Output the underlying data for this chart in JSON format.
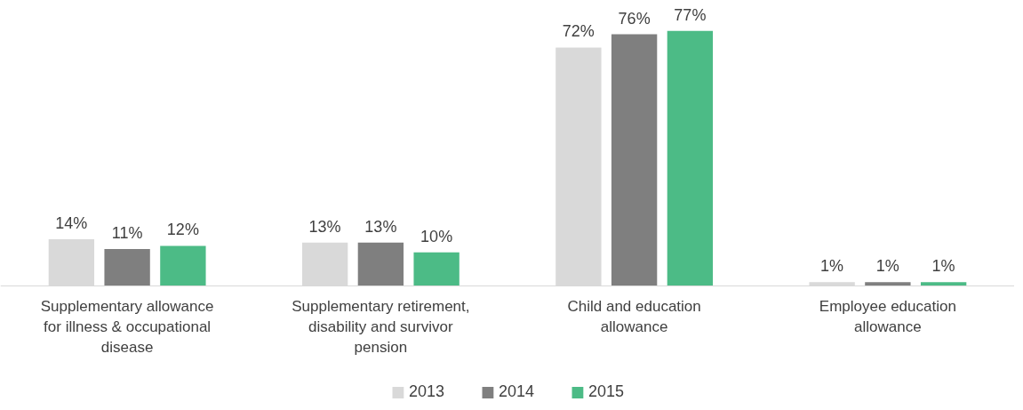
{
  "chart_data": {
    "type": "bar",
    "categories": [
      "Supplementary allowance for illness & occupational disease",
      "Supplementary retirement, disability and survivor pension",
      "Child and education allowance",
      "Employee education allowance"
    ],
    "series": [
      {
        "name": "2013",
        "color": "#d9d9d9",
        "values": [
          14,
          13,
          72,
          1
        ],
        "value_labels": [
          "14%",
          "13%",
          "72%",
          "1%"
        ]
      },
      {
        "name": "2014",
        "color": "#7f7f7f",
        "values": [
          11,
          13,
          76,
          1
        ],
        "value_labels": [
          "11%",
          "13%",
          "76%",
          "1%"
        ]
      },
      {
        "name": "2015",
        "color": "#4cbb86",
        "values": [
          12,
          10,
          77,
          1
        ],
        "value_labels": [
          "12%",
          "10%",
          "77%",
          "1%"
        ]
      }
    ],
    "legend": "bottom"
  }
}
